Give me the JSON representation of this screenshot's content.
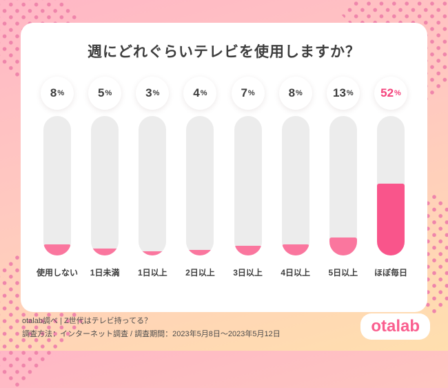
{
  "chart_data": {
    "type": "bar",
    "title": "週にどれぐらいテレビを使用しますか？",
    "categories": [
      "使用しない",
      "1日未満",
      "1日以上",
      "2日以上",
      "3日以上",
      "4日以上",
      "5日以上",
      "ほぼ毎日"
    ],
    "values": [
      8,
      5,
      3,
      4,
      7,
      8,
      13,
      52
    ],
    "unit": "%",
    "ylim": [
      0,
      100
    ],
    "highlight_index": 7,
    "legend": "none",
    "grid": "off",
    "colors": {
      "bar_fill": "#fa769e",
      "bar_fill_highlight": "#f9558b",
      "track": "#ececec",
      "value_label": "#3d3d3d",
      "value_label_highlight": "#f4437c"
    }
  },
  "footer": {
    "line1": "otalab調べ | Z世代はテレビ持ってる？",
    "line2": "調査方法：インターネット調査 / 調査期間：2023年5月8日〜2023年5月12日",
    "logo_text": "otalab"
  }
}
